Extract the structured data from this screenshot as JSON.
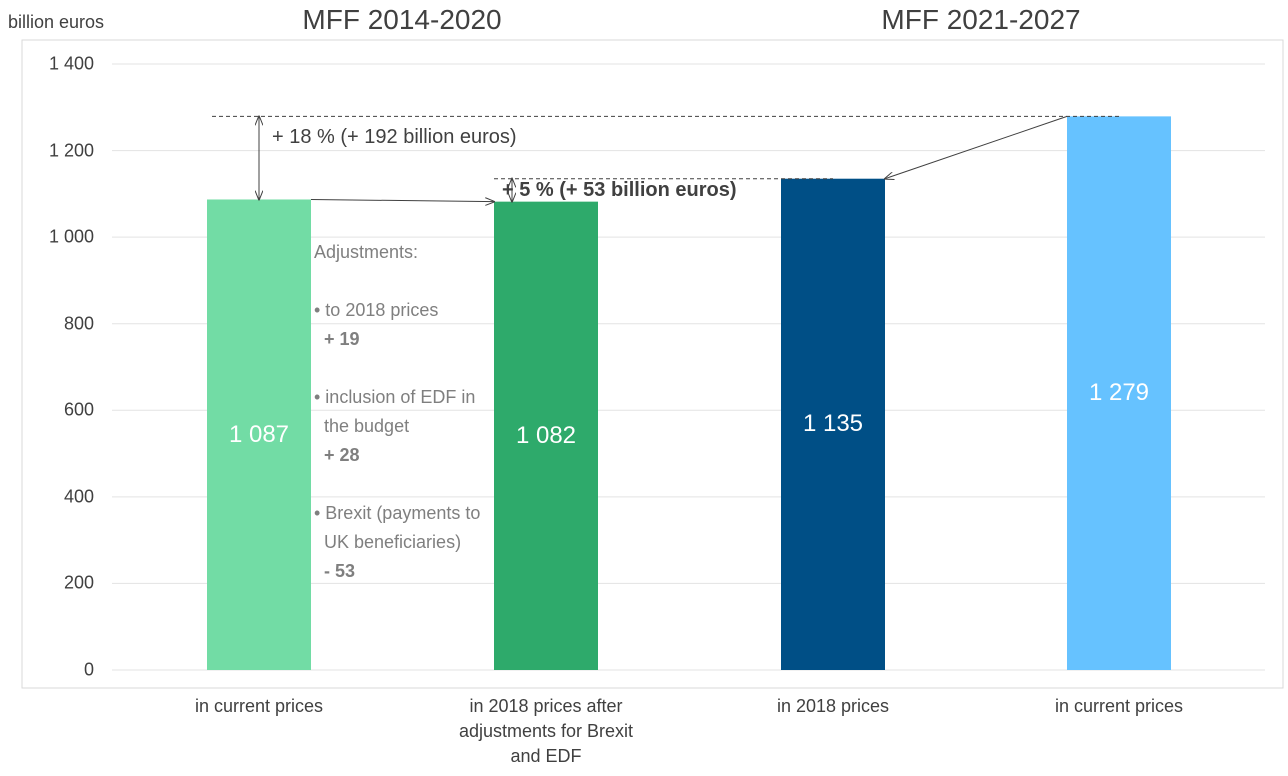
{
  "chart_data": {
    "type": "bar",
    "ylabel": "billion euros",
    "group_labels": [
      "MFF 2014-2020",
      "MFF 2021-2027"
    ],
    "categories": [
      "in current prices",
      "in 2018 prices after adjustments for Brexit and EDF",
      "in 2018 prices",
      "in current prices"
    ],
    "values": [
      1087,
      1082,
      1135,
      1279
    ],
    "value_labels": [
      "1 087",
      "1 082",
      "1 135",
      "1 279"
    ],
    "colors": [
      "#72dca5",
      "#2eaa6b",
      "#004f86",
      "#66c2ff"
    ],
    "ylim": [
      0,
      1400
    ],
    "yticks": [
      0,
      200,
      400,
      600,
      800,
      {
        "value": 1000,
        "label": "1 000"
      },
      {
        "value": 1200,
        "label": "1 200"
      },
      {
        "value": 1400,
        "label": "1 400"
      }
    ],
    "grid": true,
    "annotations": {
      "increase_total": "+ 18 % (+ 192 billion euros)",
      "increase_real": "+ 5 % (+ 53 billion euros)",
      "adjustments": {
        "heading": "Adjustments:",
        "items": [
          {
            "text": "• to 2018 prices",
            "amount": "+ 19"
          },
          {
            "text": "• inclusion of EDF in the budget",
            "amount": "+ 28"
          },
          {
            "text": "• Brexit (payments to UK beneficiaries)",
            "amount": "- 53"
          }
        ]
      }
    }
  }
}
